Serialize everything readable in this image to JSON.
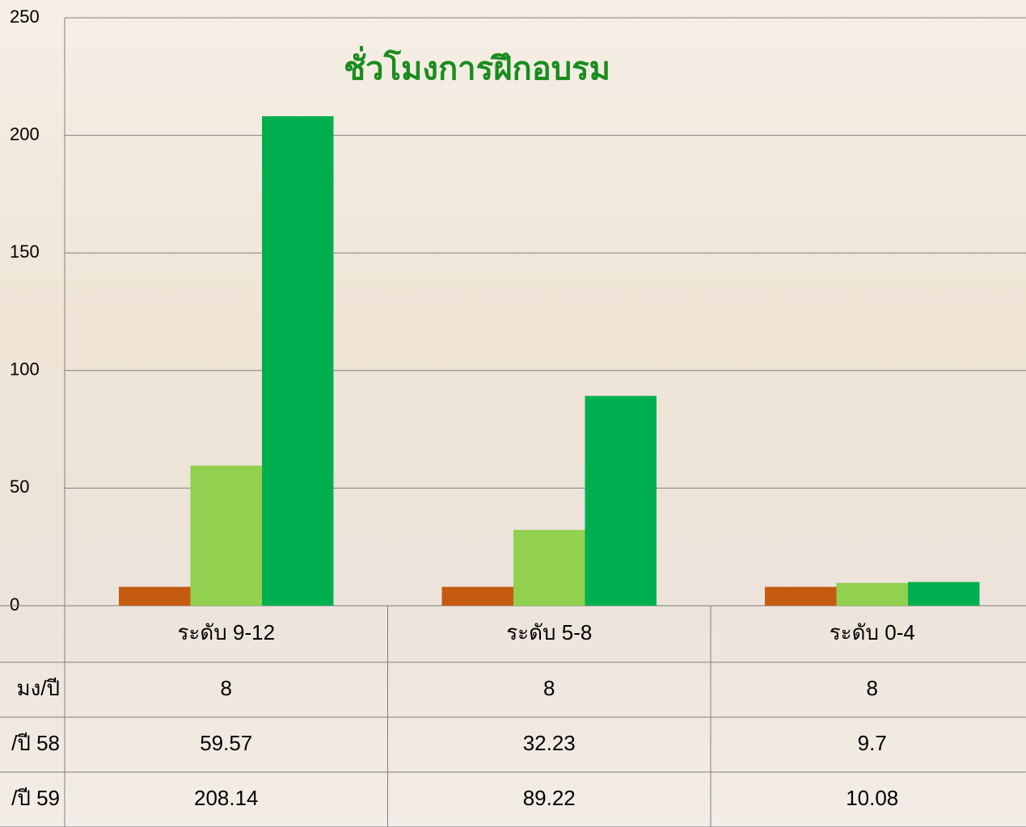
{
  "chart_data": {
    "type": "bar",
    "title": "ชั่วโมงการฝึกอบรม",
    "categories": [
      "ระดับ 9-12",
      "ระดับ 5-8",
      "ระดับ 0-4"
    ],
    "series": [
      {
        "name": "มง/ปี",
        "color": "#c55a11",
        "values": [
          8,
          8,
          8
        ]
      },
      {
        "name": "/ปี 58",
        "color": "#92d050",
        "values": [
          59.57,
          32.23,
          9.7
        ]
      },
      {
        "name": "/ปี 59",
        "color": "#00b050",
        "values": [
          208.14,
          89.22,
          10.08
        ]
      }
    ],
    "ylim": [
      0,
      250
    ],
    "yticks": [
      0,
      50,
      100,
      150,
      200,
      250
    ],
    "grid": true
  }
}
